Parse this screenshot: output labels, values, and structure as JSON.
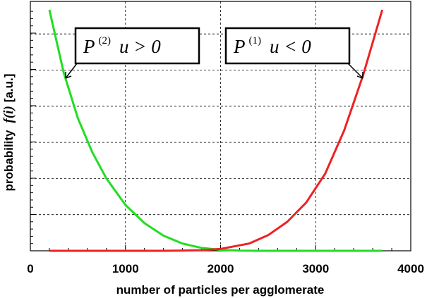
{
  "chart_data": {
    "type": "line",
    "xlabel": "number of particles per agglomerate",
    "ylabel": {
      "prefix": "probability",
      "func": "f(i)",
      "unit": "[a.u.]"
    },
    "xlim": [
      0,
      4000
    ],
    "ylim": [
      0,
      1
    ],
    "x_ticks": [
      "0",
      "1000",
      "2000",
      "3000",
      "4000"
    ],
    "grid": true,
    "series": [
      {
        "name": "P(2)",
        "color": "#22dd22",
        "x": [
          200,
          350,
          500,
          650,
          800,
          1000,
          1200,
          1400,
          1600,
          1800,
          2000,
          2200,
          2400,
          2700,
          3000,
          3300,
          3700
        ],
        "y": [
          1.0,
          0.74,
          0.55,
          0.41,
          0.3,
          0.19,
          0.115,
          0.063,
          0.03,
          0.012,
          0.004,
          0.001,
          0.0,
          0.0,
          0.0,
          0.0,
          0.0
        ]
      },
      {
        "name": "P(1)",
        "color": "#ee2222",
        "x": [
          200,
          600,
          1000,
          1400,
          1800,
          2000,
          2300,
          2500,
          2700,
          2900,
          3100,
          3300,
          3500,
          3700
        ],
        "y": [
          0.0,
          0.0,
          0.0,
          0.0,
          0.002,
          0.008,
          0.03,
          0.065,
          0.12,
          0.2,
          0.32,
          0.5,
          0.73,
          1.0
        ]
      }
    ],
    "annotations": [
      {
        "base": "P",
        "sup": "(2)",
        "condition": "u > 0",
        "series": "P(2)"
      },
      {
        "base": "P",
        "sup": "(1)",
        "condition": "u < 0",
        "series": "P(1)"
      }
    ]
  }
}
